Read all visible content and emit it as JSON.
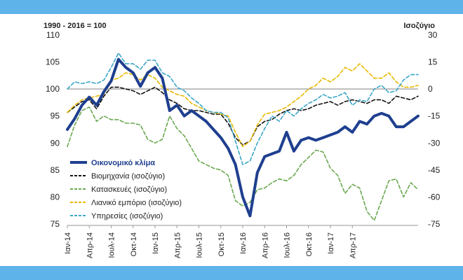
{
  "chart_data": {
    "type": "line",
    "left_axis_title": "1990 - 2016 = 100",
    "right_axis_title": "Ισοζύγιο",
    "left_ylim": [
      75,
      110
    ],
    "left_ticks": [
      75,
      80,
      85,
      90,
      95,
      100,
      105,
      110
    ],
    "right_ylim": [
      -75,
      30
    ],
    "right_ticks": [
      -75,
      -60,
      -45,
      -30,
      -15,
      0,
      15,
      30
    ],
    "reference_line": 100,
    "x_tick_labels": [
      "Ιαν-14",
      "Απρ-14",
      "Ιουλ-14",
      "Οκτ-14",
      "Ιαν-15",
      "Απρ-15",
      "Ιουλ-15",
      "Οκτ-15",
      "Ιαν-16",
      "Απρ-16",
      "Ιουλ-16",
      "Οκτ-16",
      "Ιαν-17",
      "Απρ-17"
    ],
    "legend_position": "bottom-left",
    "series": [
      {
        "name": "Οικονομικό κλίμα",
        "axis": "left",
        "color": "#1f3f8f",
        "style": "solid",
        "values": [
          92.5,
          94.5,
          97,
          98.5,
          97,
          99.5,
          101.5,
          105.5,
          104,
          103,
          100.5,
          103,
          104,
          102,
          96,
          97,
          95,
          96,
          95,
          94,
          92.5,
          91,
          89,
          86,
          80,
          76.5,
          84.5,
          87.5,
          88,
          88.5,
          92,
          88.5,
          90.5,
          91,
          90.5,
          91,
          91.5,
          92,
          93,
          92,
          94,
          93.5,
          95,
          95.5,
          95,
          93,
          93,
          94,
          95
        ]
      },
      {
        "name": "Βιομηχανία (ισοζύγιο)",
        "axis": "right",
        "color": "#111111",
        "style": "dashed",
        "values": [
          -13,
          -10,
          -7,
          -6,
          -11,
          -4,
          1,
          1,
          0,
          -1,
          -3,
          -1,
          1,
          -2,
          -6,
          -8,
          -11,
          -12,
          -12,
          -13,
          -14,
          -14,
          -19,
          -27,
          -31,
          -29,
          -21,
          -18,
          -17,
          -14,
          -12,
          -11,
          -12,
          -11,
          -9,
          -8,
          -7,
          -9,
          -7,
          -6,
          -7,
          -8,
          -6,
          -6,
          -8,
          -4,
          -5,
          -6,
          -4
        ]
      },
      {
        "name": "Κατασκευές (ισοζύγιο)",
        "axis": "right",
        "color": "#6aa84f",
        "style": "dashed",
        "values": [
          -32,
          -20,
          -12,
          -10,
          -18,
          -15,
          -17,
          -17,
          -19,
          -19,
          -20,
          -28,
          -30,
          -28,
          -15,
          -22,
          -26,
          -33,
          -40,
          -42,
          -44,
          -45,
          -48,
          -62,
          -65,
          -63,
          -56,
          -55,
          -52,
          -50,
          -51,
          -48,
          -42,
          -38,
          -34,
          -35,
          -44,
          -48,
          -58,
          -53,
          -55,
          -68,
          -73,
          -62,
          -51,
          -50,
          -60,
          -52,
          -56
        ]
      },
      {
        "name": "Λιανικό εμπόριο (ισοζύγιο)",
        "axis": "right",
        "color": "#e8b800",
        "style": "dashed",
        "values": [
          -13,
          -9,
          -6,
          -5,
          -4,
          -3,
          5,
          6,
          9,
          8,
          5,
          8,
          6,
          1,
          -1,
          -3,
          -4,
          -8,
          -10,
          -12,
          -13,
          -14,
          -15,
          -24,
          -32,
          -29,
          -20,
          -14,
          -13,
          -12,
          -10,
          -7,
          -4,
          0,
          2,
          6,
          4,
          7,
          12,
          10,
          14,
          10,
          6,
          6,
          9,
          4,
          1,
          1,
          2
        ]
      },
      {
        "name": "Υπηρεσίες (ισοζύγιο)",
        "axis": "right",
        "color": "#3aa6c8",
        "style": "dashed",
        "values": [
          0,
          4,
          3,
          4,
          3,
          5,
          12,
          20,
          14,
          14,
          11,
          16,
          16,
          9,
          7,
          1,
          -1,
          -5,
          -8,
          -12,
          -13,
          -13,
          -16,
          -29,
          -42,
          -40,
          -30,
          -22,
          -15,
          -18,
          -12,
          -15,
          -11,
          -8,
          -6,
          -3,
          -5,
          -4,
          -2,
          -9,
          -6,
          -7,
          0,
          2,
          -2,
          -1,
          5,
          8,
          8
        ]
      }
    ]
  }
}
